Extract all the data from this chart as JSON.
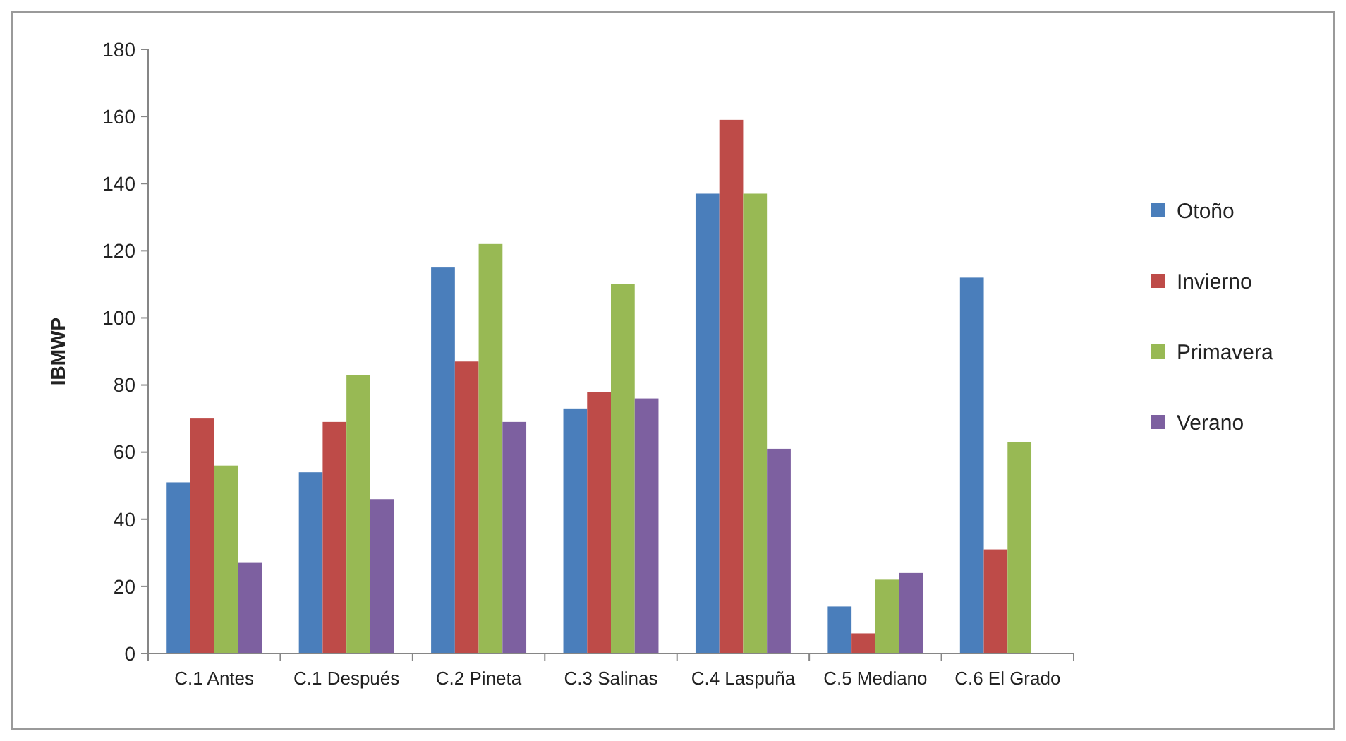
{
  "chart_data": {
    "type": "bar",
    "ylabel": "IBMWP",
    "categories": [
      "C.1 Antes",
      "C.1 Después",
      "C.2 Pineta",
      "C.3 Salinas",
      "C.4 Laspuña",
      "C.5 Mediano",
      "C.6 El Grado"
    ],
    "series": [
      {
        "name": "Otoño",
        "color": "#4a7ebb",
        "values": [
          51,
          54,
          115,
          73,
          137,
          14,
          112
        ]
      },
      {
        "name": "Invierno",
        "color": "#be4b48",
        "values": [
          70,
          69,
          87,
          78,
          159,
          6,
          31
        ]
      },
      {
        "name": "Primavera",
        "color": "#98b954",
        "values": [
          56,
          83,
          122,
          110,
          137,
          22,
          63
        ]
      },
      {
        "name": "Verano",
        "color": "#7d60a0",
        "values": [
          27,
          46,
          69,
          76,
          61,
          24,
          null
        ]
      }
    ],
    "ylim": [
      0,
      180
    ],
    "yticks": [
      0,
      20,
      40,
      60,
      80,
      100,
      120,
      140,
      160,
      180
    ],
    "grid": false,
    "legend": "right"
  }
}
